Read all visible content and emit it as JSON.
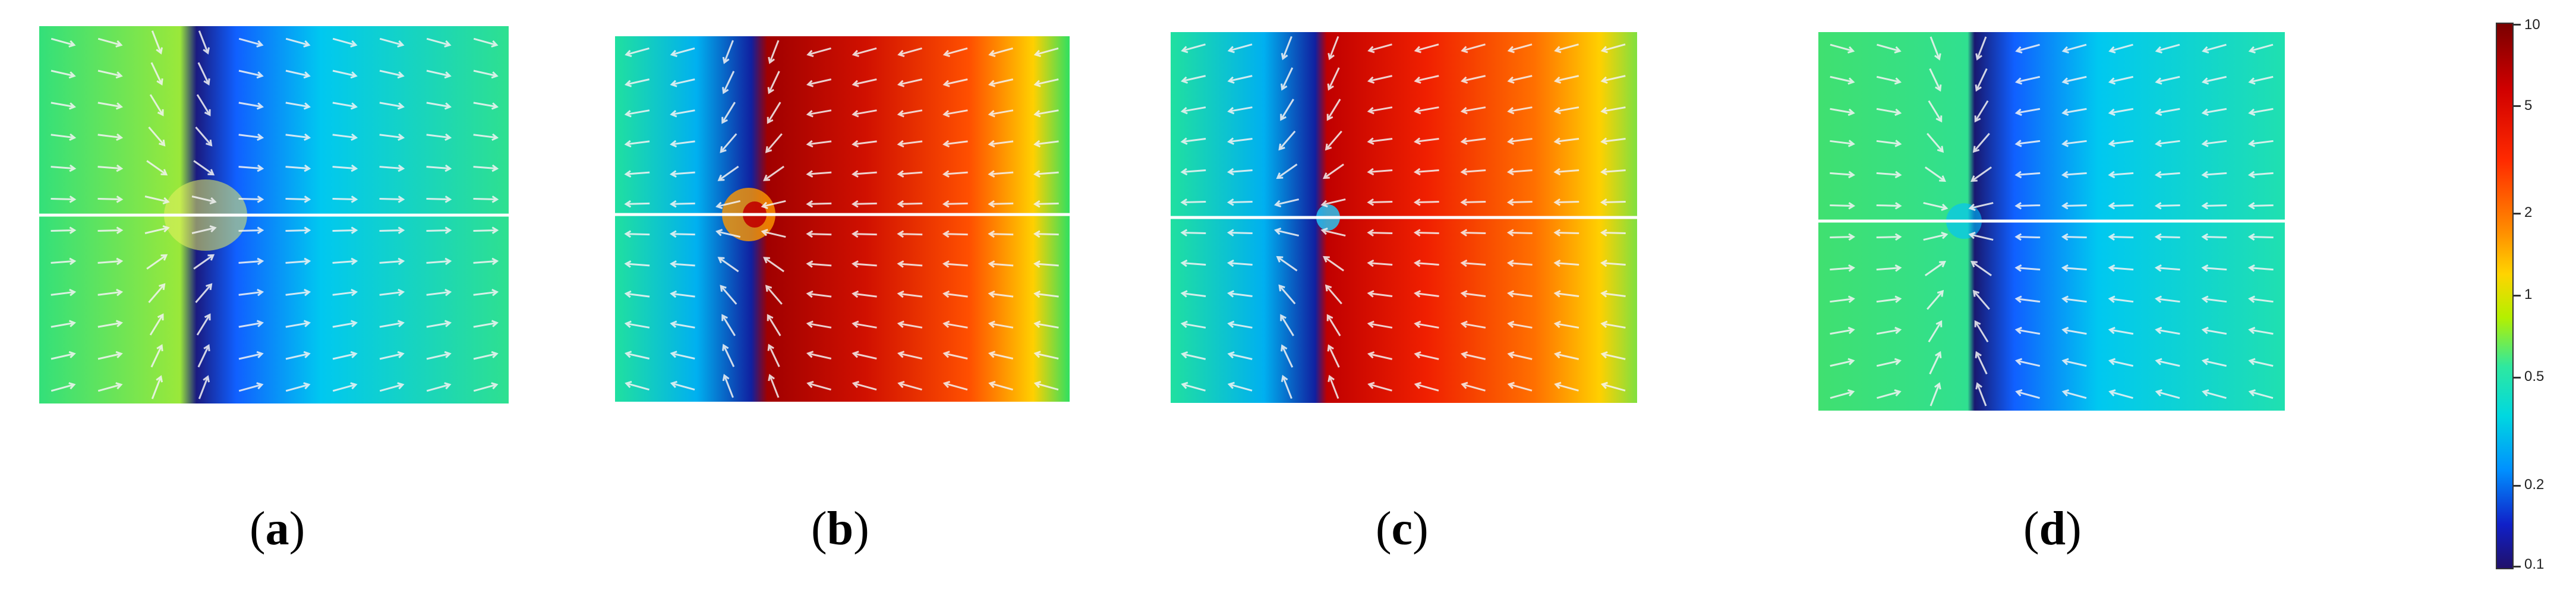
{
  "panels": [
    {
      "id": "a",
      "caption_letter": "a",
      "open_paren": "(",
      "close_paren": ")"
    },
    {
      "id": "b",
      "caption_letter": "b",
      "open_paren": "(",
      "close_paren": ")"
    },
    {
      "id": "c",
      "caption_letter": "c",
      "open_paren": "(",
      "close_paren": ")"
    },
    {
      "id": "d",
      "caption_letter": "d",
      "open_paren": "(",
      "close_paren": ")"
    }
  ],
  "colorbar": {
    "scale": "log",
    "tick_labels": [
      "10",
      "5",
      "2",
      "1",
      "0.5",
      "0.2",
      "0.1"
    ],
    "tick_values": [
      10,
      5,
      2,
      1,
      0.5,
      0.2,
      0.1
    ],
    "range": [
      0.1,
      10
    ],
    "colors": {
      "high": "#7a0000",
      "mid_high": "#ff2a00",
      "mid": "#ffd400",
      "one": "#2ee8a0",
      "mid_low": "#0090ff",
      "low": "#20106a"
    }
  }
}
